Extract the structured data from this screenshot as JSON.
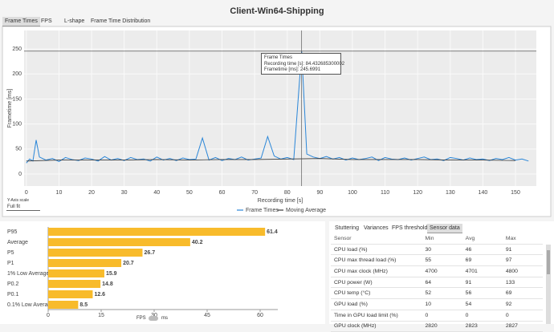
{
  "window_title": "Client-Win64-Shipping",
  "tabs": [
    "Frame Times",
    "FPS",
    "L-shape",
    "Frame Time Distribution"
  ],
  "y_scale": {
    "label": "Y-Axis scale",
    "value": "Full fit"
  },
  "tooltip": {
    "title": "Frame Times",
    "lines": [
      "Recording time [s]: 84.432685300002",
      "Frametime [ms]: 245.6991"
    ]
  },
  "chart_data": [
    {
      "type": "line",
      "x_label": "Recording time [s]",
      "y_label": "Frametime [ms]",
      "xlim": [
        -0.7,
        156.4
      ],
      "ylim": [
        -24,
        287
      ],
      "xticks": [
        0,
        10,
        20,
        30,
        40,
        50,
        60,
        70,
        80,
        90,
        100,
        110,
        120,
        130,
        140,
        150
      ],
      "yticks": [
        0,
        50,
        100,
        150,
        200,
        250
      ],
      "grid": true,
      "legend": "bottom",
      "series": [
        {
          "name": "Frame Times",
          "color": "#2a86d8",
          "x": [
            0,
            1,
            2,
            3,
            4,
            6,
            8,
            10,
            12,
            14,
            16,
            18,
            20,
            22,
            24,
            26,
            28,
            30,
            32,
            34,
            36,
            38,
            40,
            42,
            44,
            46,
            48,
            50,
            52,
            54,
            56,
            58,
            60,
            62,
            64,
            66,
            68,
            70,
            72,
            74,
            76,
            78,
            80,
            82,
            84.43,
            86,
            88,
            90,
            92,
            94,
            96,
            98,
            100,
            102,
            104,
            106,
            108,
            110,
            112,
            114,
            116,
            118,
            120,
            122,
            124,
            126,
            128,
            130,
            132,
            134,
            136,
            138,
            140,
            142,
            144,
            146,
            148,
            150,
            152,
            154
          ],
          "values": [
            22,
            30,
            26,
            68,
            34,
            28,
            31,
            25,
            33,
            29,
            27,
            32,
            30,
            26,
            35,
            28,
            31,
            27,
            33,
            29,
            30,
            26,
            34,
            28,
            31,
            27,
            32,
            29,
            30,
            72,
            28,
            33,
            27,
            31,
            29,
            34,
            28,
            30,
            32,
            75,
            36,
            30,
            33,
            29,
            245.7,
            40,
            34,
            31,
            35,
            30,
            33,
            28,
            32,
            29,
            31,
            34,
            27,
            33,
            30,
            29,
            32,
            28,
            31,
            34,
            29,
            30,
            27,
            33,
            31,
            28,
            32,
            29,
            30,
            27,
            31,
            29,
            33,
            28,
            30,
            26
          ]
        },
        {
          "name": "Moving Average",
          "color": "#3a3a3a",
          "x": [
            0,
            10,
            20,
            30,
            40,
            50,
            60,
            70,
            80,
            90,
            100,
            110,
            120,
            130,
            140,
            150
          ],
          "values": [
            26,
            28,
            28,
            28,
            29,
            28,
            29,
            29,
            30,
            31,
            29,
            29,
            29,
            28,
            28,
            27
          ]
        }
      ]
    },
    {
      "type": "bar",
      "horizontal": true,
      "color": "#f8bb2b",
      "categories": [
        "P95",
        "Average",
        "P5",
        "P1",
        "1% Low Average",
        "P0.2",
        "P0.1",
        "0.1% Low Average"
      ],
      "values": [
        61.4,
        40.2,
        26.7,
        20.7,
        15.9,
        14.8,
        12.6,
        8.5
      ],
      "xlim": [
        0,
        65
      ],
      "xticks": [
        0,
        15,
        30,
        45,
        60
      ]
    }
  ],
  "unit_toggle": {
    "left": "FPS",
    "right": "ms"
  },
  "bottom_tabs": [
    "Stuttering",
    "Variances",
    "FPS thresholds",
    "Sensor data"
  ],
  "sensor_table": {
    "header": [
      "Sensor",
      "Min",
      "Avg",
      "Max"
    ],
    "rows": [
      [
        "CPU load (%)",
        "30",
        "46",
        "91"
      ],
      [
        "CPU max thread load (%)",
        "55",
        "69",
        "97"
      ],
      [
        "CPU max clock (MHz)",
        "4700",
        "4701",
        "4800"
      ],
      [
        "CPU power (W)",
        "64",
        "91",
        "133"
      ],
      [
        "CPU temp (°C)",
        "52",
        "56",
        "69"
      ],
      [
        "GPU load (%)",
        "10",
        "54",
        "92"
      ],
      [
        "Time in GPU load limit (%)",
        "0",
        "0",
        "0"
      ],
      [
        "GPU clock (MHz)",
        "2820",
        "2823",
        "2827"
      ]
    ]
  }
}
